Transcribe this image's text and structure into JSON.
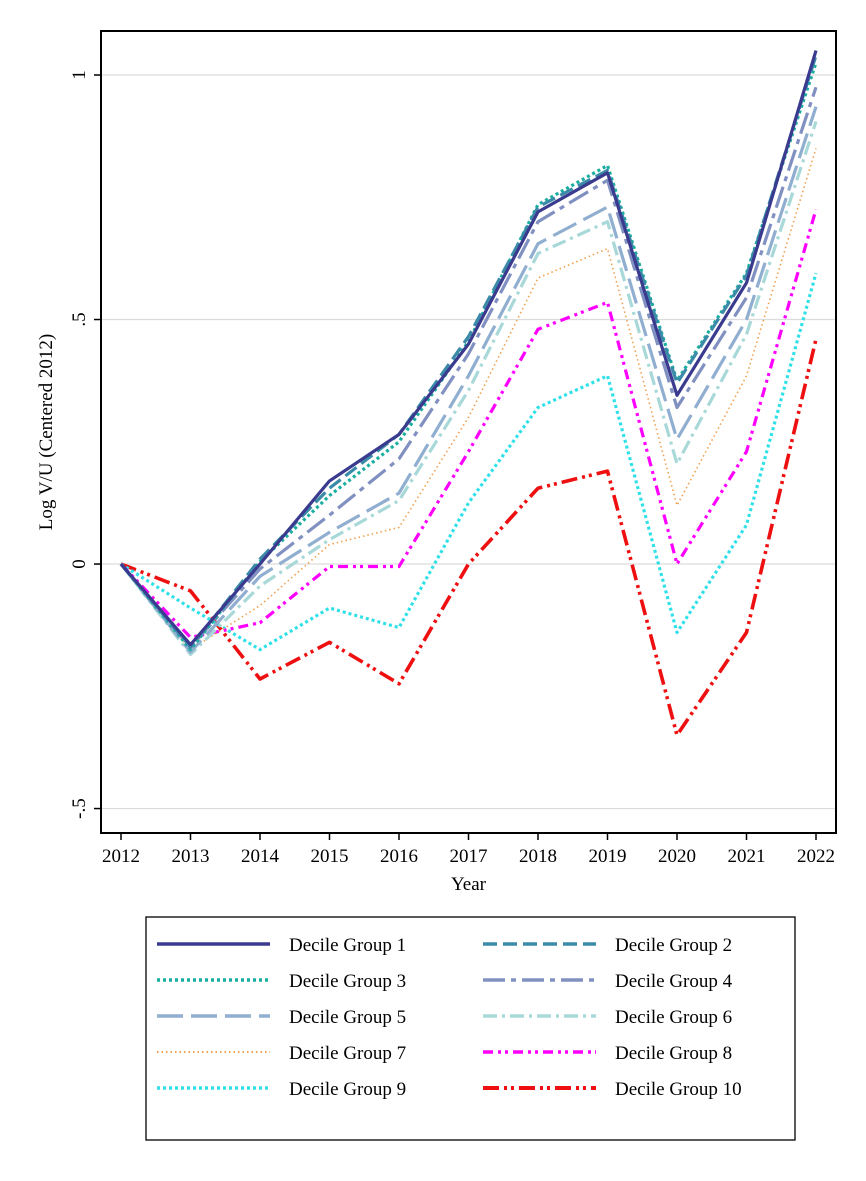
{
  "chart_data": {
    "type": "line",
    "xlabel": "Year",
    "ylabel": "Log V/U (Centered 2012)",
    "x": [
      2012,
      2013,
      2014,
      2015,
      2016,
      2017,
      2018,
      2019,
      2020,
      2021,
      2022
    ],
    "xticks": [
      "2012",
      "2013",
      "2014",
      "2015",
      "2016",
      "2017",
      "2018",
      "2019",
      "2020",
      "2021",
      "2022"
    ],
    "ylim": [
      -0.55,
      1.09
    ],
    "yticks": [
      {
        "value": -0.5,
        "label": "-.5"
      },
      {
        "value": 0,
        "label": "0"
      },
      {
        "value": 0.5,
        "label": ".5"
      },
      {
        "value": 1,
        "label": "1"
      }
    ],
    "grid": true,
    "legend_position": "bottom",
    "series": [
      {
        "name": "Decile Group 1",
        "color": "#3a3a8f",
        "style": "solid",
        "values": [
          0,
          -0.165,
          0.0,
          0.17,
          0.265,
          0.45,
          0.72,
          0.8,
          0.345,
          0.575,
          1.05
        ]
      },
      {
        "name": "Decile Group 2",
        "color": "#3a8aa8",
        "style": "dash",
        "values": [
          0,
          -0.17,
          0.01,
          0.155,
          0.265,
          0.465,
          0.73,
          0.805,
          0.37,
          0.59,
          1.04
        ]
      },
      {
        "name": "Decile Group 3",
        "color": "#1aaea0",
        "style": "dot",
        "values": [
          0,
          -0.175,
          0.005,
          0.14,
          0.25,
          0.455,
          0.735,
          0.815,
          0.375,
          0.595,
          1.025
        ]
      },
      {
        "name": "Decile Group 4",
        "color": "#8090c0",
        "style": "longdashdot",
        "values": [
          0,
          -0.17,
          -0.01,
          0.1,
          0.215,
          0.43,
          0.7,
          0.785,
          0.32,
          0.545,
          0.975
        ]
      },
      {
        "name": "Decile Group 5",
        "color": "#90aed0",
        "style": "longdash",
        "values": [
          0,
          -0.18,
          -0.025,
          0.065,
          0.145,
          0.385,
          0.655,
          0.73,
          0.255,
          0.5,
          0.935
        ]
      },
      {
        "name": "Decile Group 6",
        "color": "#a8d8d8",
        "style": "dashdot",
        "values": [
          0,
          -0.185,
          -0.045,
          0.05,
          0.13,
          0.355,
          0.635,
          0.7,
          0.205,
          0.47,
          0.905
        ]
      },
      {
        "name": "Decile Group 7",
        "color": "#f0a050",
        "style": "shortdot",
        "values": [
          0,
          -0.175,
          -0.085,
          0.04,
          0.075,
          0.3,
          0.585,
          0.645,
          0.12,
          0.385,
          0.85
        ]
      },
      {
        "name": "Decile Group 8",
        "color": "#ff00ff",
        "style": "dashdotdot",
        "values": [
          0,
          -0.15,
          -0.12,
          -0.005,
          -0.005,
          0.23,
          0.48,
          0.535,
          0.0,
          0.23,
          0.725
        ]
      },
      {
        "name": "Decile Group 9",
        "color": "#30e0e8",
        "style": "dot",
        "values": [
          0,
          -0.09,
          -0.175,
          -0.09,
          -0.13,
          0.125,
          0.32,
          0.385,
          -0.14,
          0.08,
          0.595
        ]
      },
      {
        "name": "Decile Group 10",
        "color": "#ee1010",
        "style": "thickdashdotdot",
        "values": [
          0,
          -0.055,
          -0.235,
          -0.16,
          -0.245,
          0.0,
          0.155,
          0.19,
          -0.35,
          -0.14,
          0.46
        ]
      }
    ]
  }
}
